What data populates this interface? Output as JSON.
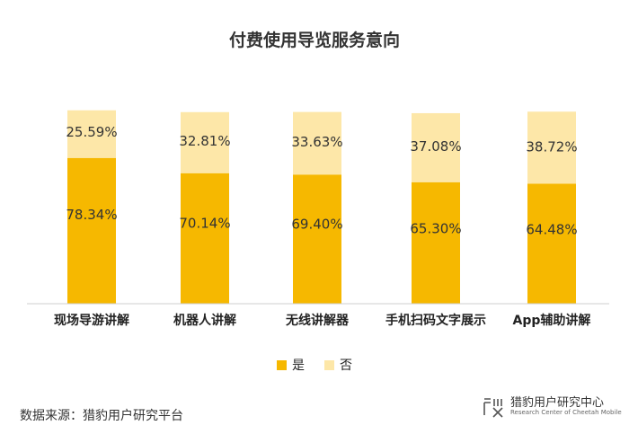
{
  "title": "付费使用导览服务意向",
  "legend": [
    {
      "label": "是",
      "color": "#F6B800"
    },
    {
      "label": "否",
      "color": "#FDE7A8"
    }
  ],
  "source": "数据来源：猎豹用户研究平台",
  "logo": {
    "name_cn": "猎豹用户研究中心",
    "name_en": "Research Center of Cheetah Mobile"
  },
  "chart_data": {
    "type": "bar",
    "stacked": true,
    "categories": [
      "现场导游讲解",
      "机器人讲解",
      "无线讲解器",
      "手机扫码文字展示",
      "App辅助讲解"
    ],
    "series": [
      {
        "name": "是",
        "values": [
          78.34,
          70.14,
          69.4,
          65.3,
          64.48
        ],
        "labels": [
          "78.34%",
          "70.14%",
          "69.40%",
          "65.30%",
          "64.48%"
        ],
        "color": "#F6B800"
      },
      {
        "name": "否",
        "values": [
          25.59,
          32.81,
          33.63,
          37.08,
          38.72
        ],
        "labels": [
          "25.59%",
          "32.81%",
          "33.63%",
          "37.08%",
          "38.72%"
        ],
        "color": "#FDE7A8"
      }
    ],
    "legend_position": "bottom",
    "grid": false
  }
}
